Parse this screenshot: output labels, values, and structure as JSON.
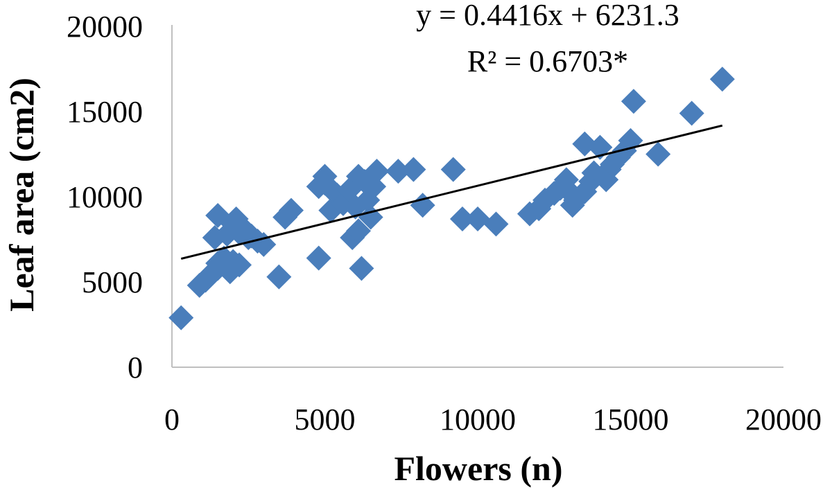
{
  "chart_data": {
    "type": "scatter",
    "xlabel": "Flowers (n)",
    "ylabel": "Leaf area (cm2)",
    "xlim": [
      0,
      20000
    ],
    "ylim": [
      0,
      20000
    ],
    "x_ticks": [
      "0",
      "5000",
      "10000",
      "15000",
      "20000"
    ],
    "y_ticks": [
      "0",
      "5000",
      "10000",
      "15000",
      "20000"
    ],
    "grid": false,
    "legend": "none",
    "marker": "diamond",
    "marker_color": "#4a7ebb",
    "trendline": {
      "type": "linear",
      "slope": 0.4416,
      "intercept": 6231.3,
      "x_range": [
        300,
        18000
      ],
      "color": "#000000"
    },
    "annotations": [
      "y = 0.4416x + 6231.3",
      "R² = 0.6703*"
    ],
    "series": [
      {
        "points": [
          [
            300,
            2900
          ],
          [
            900,
            4800
          ],
          [
            1100,
            5100
          ],
          [
            1300,
            5500
          ],
          [
            1500,
            5800
          ],
          [
            1500,
            6100
          ],
          [
            1400,
            7600
          ],
          [
            1500,
            8900
          ],
          [
            1700,
            6400
          ],
          [
            1800,
            7800
          ],
          [
            1900,
            5600
          ],
          [
            2000,
            6200
          ],
          [
            2000,
            8400
          ],
          [
            2100,
            8700
          ],
          [
            2200,
            6000
          ],
          [
            2200,
            7900
          ],
          [
            2300,
            8200
          ],
          [
            2500,
            7600
          ],
          [
            2600,
            7700
          ],
          [
            2800,
            7400
          ],
          [
            3000,
            7200
          ],
          [
            3500,
            5300
          ],
          [
            3700,
            8800
          ],
          [
            3900,
            9200
          ],
          [
            4800,
            6400
          ],
          [
            4800,
            10600
          ],
          [
            5000,
            11200
          ],
          [
            5000,
            10800
          ],
          [
            5200,
            9200
          ],
          [
            5400,
            10100
          ],
          [
            5600,
            9600
          ],
          [
            5800,
            10400
          ],
          [
            5900,
            7600
          ],
          [
            6000,
            9400
          ],
          [
            6100,
            8000
          ],
          [
            6100,
            11200
          ],
          [
            6200,
            5800
          ],
          [
            6300,
            10900
          ],
          [
            6400,
            9800
          ],
          [
            6500,
            8800
          ],
          [
            6600,
            10600
          ],
          [
            6700,
            11500
          ],
          [
            7400,
            11500
          ],
          [
            7900,
            11600
          ],
          [
            8200,
            9500
          ],
          [
            9200,
            11600
          ],
          [
            9500,
            8700
          ],
          [
            10000,
            8700
          ],
          [
            10600,
            8400
          ],
          [
            11700,
            9000
          ],
          [
            12000,
            9300
          ],
          [
            12200,
            9800
          ],
          [
            12500,
            10200
          ],
          [
            12700,
            10500
          ],
          [
            12900,
            11000
          ],
          [
            13000,
            10300
          ],
          [
            13100,
            9500
          ],
          [
            13200,
            9800
          ],
          [
            13500,
            10300
          ],
          [
            13500,
            13100
          ],
          [
            13700,
            10900
          ],
          [
            13800,
            11400
          ],
          [
            14000,
            12900
          ],
          [
            14200,
            11000
          ],
          [
            14300,
            11600
          ],
          [
            14400,
            11900
          ],
          [
            14600,
            12300
          ],
          [
            14800,
            12700
          ],
          [
            15000,
            13300
          ],
          [
            15100,
            15600
          ],
          [
            15900,
            12500
          ],
          [
            17000,
            14900
          ],
          [
            18000,
            16900
          ]
        ]
      }
    ]
  }
}
